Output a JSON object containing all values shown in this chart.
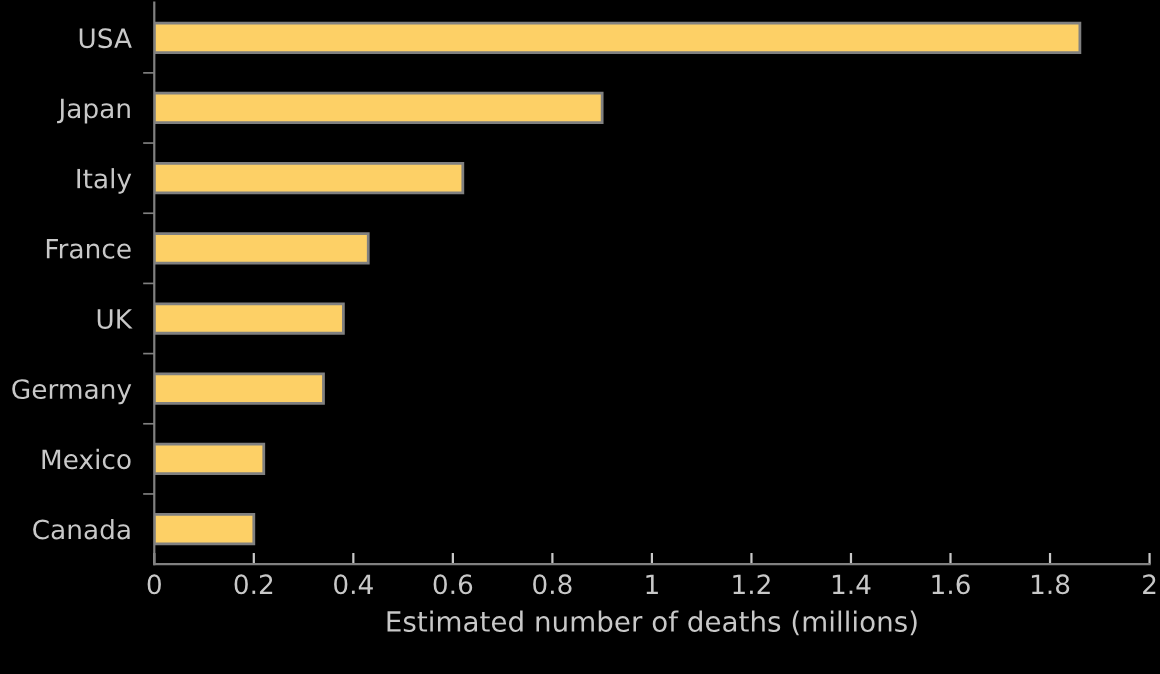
{
  "chart_data": {
    "type": "bar",
    "orientation": "horizontal",
    "xlabel": "Estimated number of deaths (millions)",
    "categories": [
      "USA",
      "Japan",
      "Italy",
      "France",
      "UK",
      "Germany",
      "Mexico",
      "Canada"
    ],
    "values": [
      1.86,
      0.9,
      0.62,
      0.43,
      0.38,
      0.34,
      0.22,
      0.2
    ],
    "color": "#fdd066",
    "xlim": [
      0,
      2
    ],
    "xticks": [
      0,
      0.2,
      0.4,
      0.6,
      0.8,
      1,
      1.2,
      1.4,
      1.6,
      1.8,
      2
    ],
    "grid": false,
    "legend": false
  }
}
